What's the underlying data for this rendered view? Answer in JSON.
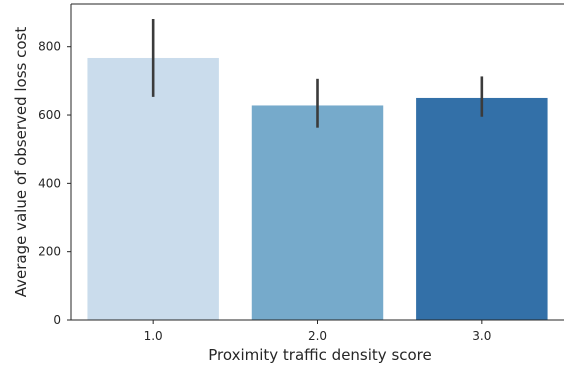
{
  "chart_data": {
    "type": "bar",
    "title": "",
    "xlabel": "Proximity traffic density score",
    "ylabel": "Average value of observed loss cost",
    "categories": [
      "1.0",
      "2.0",
      "3.0"
    ],
    "values": [
      767,
      628,
      650
    ],
    "error_bars": [
      {
        "low": 653,
        "high": 881
      },
      {
        "low": 563,
        "high": 706
      },
      {
        "low": 595,
        "high": 713
      }
    ],
    "colors": [
      "#cadcec",
      "#76aacb",
      "#3370a8"
    ],
    "error_color": "#3b3b3b",
    "ylim": [
      0,
      925
    ],
    "yticks": [
      "0",
      "200",
      "400",
      "600",
      "800"
    ],
    "grid": false,
    "legend": "none"
  }
}
